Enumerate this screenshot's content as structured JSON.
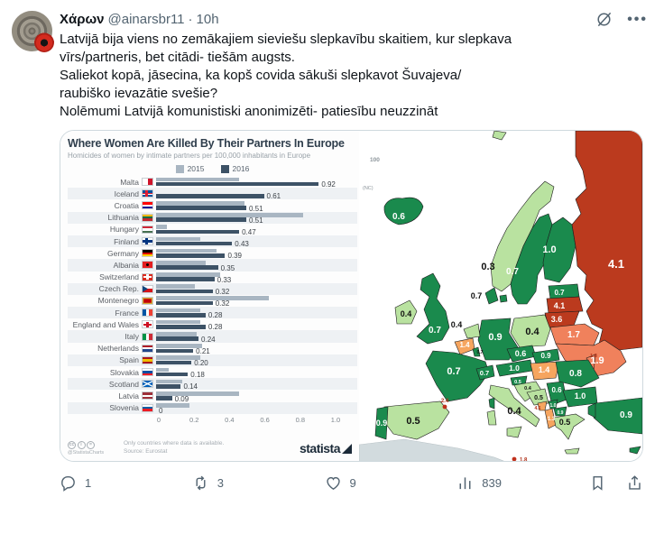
{
  "header": {
    "display_name": "Χάρων",
    "handle": "@ainarsbr11",
    "dot": "·",
    "time": "10h"
  },
  "tweet": {
    "text": "Latvijā bija viens no zemākajiem sieviešu slepkavību skaitiem, kur slepkava\nvīrs/partneris, bet citādi- tiešām augsts.\nSaliekot kopā, jāsecina, ka kopš covida sākuši slepkavot Šuvajeva/\nraubiško ievazātie svešie?\nNolēmumi Latvijā komunistiski anonimizēti- patiesību neuzzināt"
  },
  "chart_data": {
    "type": "bar",
    "orientation": "horizontal",
    "title": "Where Women Are Killed By Their Partners In Europe",
    "subtitle": "Homicides of women by intimate partners per 100,000 inhabitants in Europe",
    "legend_position": "top",
    "xlim": [
      0,
      1.0
    ],
    "xticks": [
      "0",
      "0.2",
      "0.4",
      "0.6",
      "0.8",
      "1.0"
    ],
    "colors": {
      "y2015": "#a9b6c2",
      "y2016": "#3d5266"
    },
    "categories": [
      {
        "name": "Malta",
        "flag": {
          "dir": "v",
          "stripes": [
            "#ffffff",
            "#cf142b"
          ]
        }
      },
      {
        "name": "Iceland",
        "flag": {
          "dir": "h",
          "stripes": [
            "#02529c"
          ],
          "nordic": [
            "#ffffff",
            "#dc1e35"
          ]
        }
      },
      {
        "name": "Croatia",
        "flag": {
          "dir": "h",
          "stripes": [
            "#ff0000",
            "#ffffff",
            "#171796"
          ]
        }
      },
      {
        "name": "Lithuania",
        "flag": {
          "dir": "h",
          "stripes": [
            "#fdb913",
            "#006a44",
            "#c1272d"
          ]
        }
      },
      {
        "name": "Hungary",
        "flag": {
          "dir": "h",
          "stripes": [
            "#ce2939",
            "#ffffff",
            "#477050"
          ]
        }
      },
      {
        "name": "Finland",
        "flag": {
          "dir": "h",
          "stripes": [
            "#ffffff"
          ],
          "nordic": [
            "#003580",
            "#003580"
          ]
        }
      },
      {
        "name": "Germany",
        "flag": {
          "dir": "h",
          "stripes": [
            "#000000",
            "#dd0000",
            "#ffce00"
          ]
        }
      },
      {
        "name": "Albania",
        "flag": {
          "dir": "h",
          "stripes": [
            "#e41e20"
          ],
          "dot": "#000000"
        }
      },
      {
        "name": "Switzerland",
        "flag": {
          "dir": "h",
          "stripes": [
            "#da291c"
          ],
          "cross": "#ffffff"
        }
      },
      {
        "name": "Czech Rep.",
        "flag": {
          "dir": "h",
          "stripes": [
            "#ffffff",
            "#d7141a"
          ],
          "wedge": "#11457e"
        }
      },
      {
        "name": "Montenegro",
        "flag": {
          "dir": "h",
          "stripes": [
            "#c40308"
          ],
          "frame": "#d3ae3b"
        }
      },
      {
        "name": "France",
        "flag": {
          "dir": "v",
          "stripes": [
            "#0055a4",
            "#ffffff",
            "#ef4135"
          ]
        }
      },
      {
        "name": "England and Wales",
        "flag": {
          "dir": "h",
          "stripes": [
            "#ffffff"
          ],
          "cross": "#ce1124"
        }
      },
      {
        "name": "Italy",
        "flag": {
          "dir": "v",
          "stripes": [
            "#009246",
            "#ffffff",
            "#ce2b37"
          ]
        }
      },
      {
        "name": "Netherlands",
        "flag": {
          "dir": "h",
          "stripes": [
            "#ae1c28",
            "#ffffff",
            "#21468b"
          ]
        }
      },
      {
        "name": "Spain",
        "flag": {
          "dir": "h",
          "stripes": [
            "#aa151b",
            "#f1bf00",
            "#aa151b"
          ]
        }
      },
      {
        "name": "Slovakia",
        "flag": {
          "dir": "h",
          "stripes": [
            "#ffffff",
            "#0b4ea2",
            "#ee1c25"
          ]
        }
      },
      {
        "name": "Scotland",
        "flag": {
          "dir": "h",
          "stripes": [
            "#005eb8"
          ],
          "saltire": "#ffffff"
        }
      },
      {
        "name": "Latvia",
        "flag": {
          "dir": "h",
          "stripes": [
            "#9e3039",
            "#ffffff",
            "#9e3039"
          ]
        }
      },
      {
        "name": "Slovenia",
        "flag": {
          "dir": "h",
          "stripes": [
            "#ffffff",
            "#005da4",
            "#ed1c24"
          ]
        }
      }
    ],
    "series": [
      {
        "name": "2015",
        "values": [
          0.47,
          0,
          0.5,
          0.83,
          0.06,
          0.25,
          0.34,
          0.28,
          0.36,
          0.22,
          0.64,
          0.25,
          0.25,
          0.23,
          0.26,
          0.25,
          0.07,
          0.15,
          0.47,
          0.19
        ]
      },
      {
        "name": "2016",
        "values": [
          0.92,
          0.61,
          0.51,
          0.51,
          0.47,
          0.43,
          0.39,
          0.35,
          0.33,
          0.32,
          0.32,
          0.28,
          0.28,
          0.24,
          0.21,
          0.2,
          0.18,
          0.14,
          0.09,
          0
        ],
        "labels": [
          "0.92",
          "0.61",
          "0.51",
          "0.51",
          "0.47",
          "0.43",
          "0.39",
          "0.35",
          "0.33",
          "0.32",
          "0.32",
          "0.28",
          "0.28",
          "0.24",
          "0.21",
          "0.20",
          "0.18",
          "0.14",
          "0.09",
          "0"
        ]
      }
    ]
  },
  "chart_footer": {
    "cc_icons": [
      "cc",
      "i",
      "="
    ],
    "credit": "@StatistaCharts",
    "note": "Only countries where data is available.",
    "source": "Source: Eurostat",
    "brand": "statista"
  },
  "map": {
    "fragments": [
      "100",
      "(NC)"
    ],
    "palette": {
      "dark_green": "#1a8a4d",
      "light_green": "#b9e2a0",
      "orange": "#f6a55f",
      "salmon": "#f0815c",
      "red": "#bb3a1e",
      "gray": "#d2dbde",
      "stroke": "#1c1c1c",
      "marker_text": "#b03018"
    },
    "countries": [
      {
        "id": "iceland",
        "name": "Iceland",
        "value": "0.6",
        "band": "dark_green",
        "text": "white"
      },
      {
        "id": "svalbard",
        "name": "Svalbard",
        "value": "",
        "band": "light_green",
        "text": "black"
      },
      {
        "id": "norway",
        "name": "Norway",
        "value": "0.3",
        "band": "light_green",
        "text": "black"
      },
      {
        "id": "sweden",
        "name": "Sweden",
        "value": "0.7",
        "band": "dark_green",
        "text": "white"
      },
      {
        "id": "finland",
        "name": "Finland",
        "value": "1.0",
        "band": "dark_green",
        "text": "white"
      },
      {
        "id": "russia",
        "name": "Russia",
        "value": "4.1",
        "band": "red",
        "text": "white"
      },
      {
        "id": "estonia",
        "name": "Estonia",
        "value": "0.7",
        "band": "dark_green",
        "text": "white"
      },
      {
        "id": "latvia",
        "name": "Latvia",
        "value": "4.1",
        "band": "red",
        "text": "white"
      },
      {
        "id": "lithuania",
        "name": "Lithuania",
        "value": "3.6",
        "band": "red",
        "text": "white"
      },
      {
        "id": "kaliningrad",
        "name": "Kaliningrad",
        "value": "",
        "band": "red",
        "text": "white"
      },
      {
        "id": "belarus",
        "name": "Belarus",
        "value": "1.7",
        "band": "salmon",
        "text": "white"
      },
      {
        "id": "ukraine",
        "name": "Ukraine",
        "value": "1.9",
        "band": "salmon",
        "text": "white"
      },
      {
        "id": "moldova",
        "name": "Moldova",
        "value": "1.8",
        "band": "salmon",
        "text": "marker"
      },
      {
        "id": "poland",
        "name": "Poland",
        "value": "0.4",
        "band": "light_green",
        "text": "black"
      },
      {
        "id": "germany",
        "name": "Germany",
        "value": "0.9",
        "band": "dark_green",
        "text": "white"
      },
      {
        "id": "denmark",
        "name": "Denmark",
        "value": "0.7",
        "band": "dark_green",
        "text": "black"
      },
      {
        "id": "netherlands",
        "name": "Netherlands",
        "value": "0.4",
        "band": "light_green",
        "text": "black"
      },
      {
        "id": "belgium",
        "name": "Belgium",
        "value": "1.4",
        "band": "orange",
        "text": "white"
      },
      {
        "id": "luxembourg",
        "name": "Luxembourg",
        "value": "0.7",
        "band": "dark_green",
        "text": "black"
      },
      {
        "id": "ireland",
        "name": "Ireland",
        "value": "0.4",
        "band": "light_green",
        "text": "black"
      },
      {
        "id": "uk",
        "name": "United Kingdom",
        "value": "0.7",
        "band": "dark_green",
        "text": "white"
      },
      {
        "id": "france",
        "name": "France",
        "value": "0.7",
        "band": "dark_green",
        "text": "white"
      },
      {
        "id": "switzerland",
        "name": "Switzerland",
        "value": "0.7",
        "band": "dark_green",
        "text": "white"
      },
      {
        "id": "czech",
        "name": "Czech Republic",
        "value": "0.6",
        "band": "dark_green",
        "text": "white"
      },
      {
        "id": "austria",
        "name": "Austria",
        "value": "1.0",
        "band": "dark_green",
        "text": "white"
      },
      {
        "id": "slovakia",
        "name": "Slovakia",
        "value": "0.9",
        "band": "dark_green",
        "text": "white"
      },
      {
        "id": "hungary",
        "name": "Hungary",
        "value": "1.4",
        "band": "orange",
        "text": "white"
      },
      {
        "id": "slovenia",
        "name": "Slovenia",
        "value": "0.5",
        "band": "dark_green",
        "text": "white"
      },
      {
        "id": "croatia",
        "name": "Croatia",
        "value": "0.4",
        "band": "light_green",
        "text": "black"
      },
      {
        "id": "bosnia",
        "name": "Bosnia",
        "value": "0.5",
        "band": "light_green",
        "text": "black"
      },
      {
        "id": "serbia",
        "name": "Serbia",
        "value": "0.6",
        "band": "dark_green",
        "text": "white"
      },
      {
        "id": "romania",
        "name": "Romania",
        "value": "0.8",
        "band": "dark_green",
        "text": "white"
      },
      {
        "id": "bulgaria",
        "name": "Bulgaria",
        "value": "1.0",
        "band": "dark_green",
        "text": "white"
      },
      {
        "id": "montenegro",
        "name": "Montenegro",
        "value": "4.6",
        "band": "orange",
        "text": "marker"
      },
      {
        "id": "kosovo",
        "name": "Kosovo",
        "value": "1.0",
        "band": "dark_green",
        "text": "white"
      },
      {
        "id": "macedonia",
        "name": "North Macedonia",
        "value": "0.9",
        "band": "dark_green",
        "text": "white"
      },
      {
        "id": "albania",
        "name": "Albania",
        "value": "1.3",
        "band": "orange",
        "text": "white"
      },
      {
        "id": "greece",
        "name": "Greece",
        "value": "0.5",
        "band": "light_green",
        "text": "black"
      },
      {
        "id": "italy",
        "name": "Italy",
        "value": "0.4",
        "band": "light_green",
        "text": "black"
      },
      {
        "id": "corsica",
        "name": "Corsica",
        "value": "",
        "band": "dark_green",
        "text": "white"
      },
      {
        "id": "spain",
        "name": "Spain",
        "value": "0.5",
        "band": "light_green",
        "text": "black"
      },
      {
        "id": "portugal",
        "name": "Portugal",
        "value": "0.9",
        "band": "dark_green",
        "text": "white"
      },
      {
        "id": "turkey",
        "name": "Turkey",
        "value": "0.9",
        "band": "dark_green",
        "text": "white"
      },
      {
        "id": "cyprus",
        "name": "Cyprus",
        "value": "1.0",
        "band": "dark_green",
        "text": "white"
      },
      {
        "id": "africa",
        "name": "North Africa",
        "value": "",
        "band": "gray",
        "text": "black"
      }
    ],
    "markers": [
      {
        "id": "andorra",
        "name": "Andorra",
        "value": "2.4"
      },
      {
        "id": "malta",
        "name": "Malta",
        "value": "1.8"
      }
    ]
  },
  "engagement": {
    "replies": "1",
    "reposts": "3",
    "likes": "9",
    "views": "839"
  }
}
